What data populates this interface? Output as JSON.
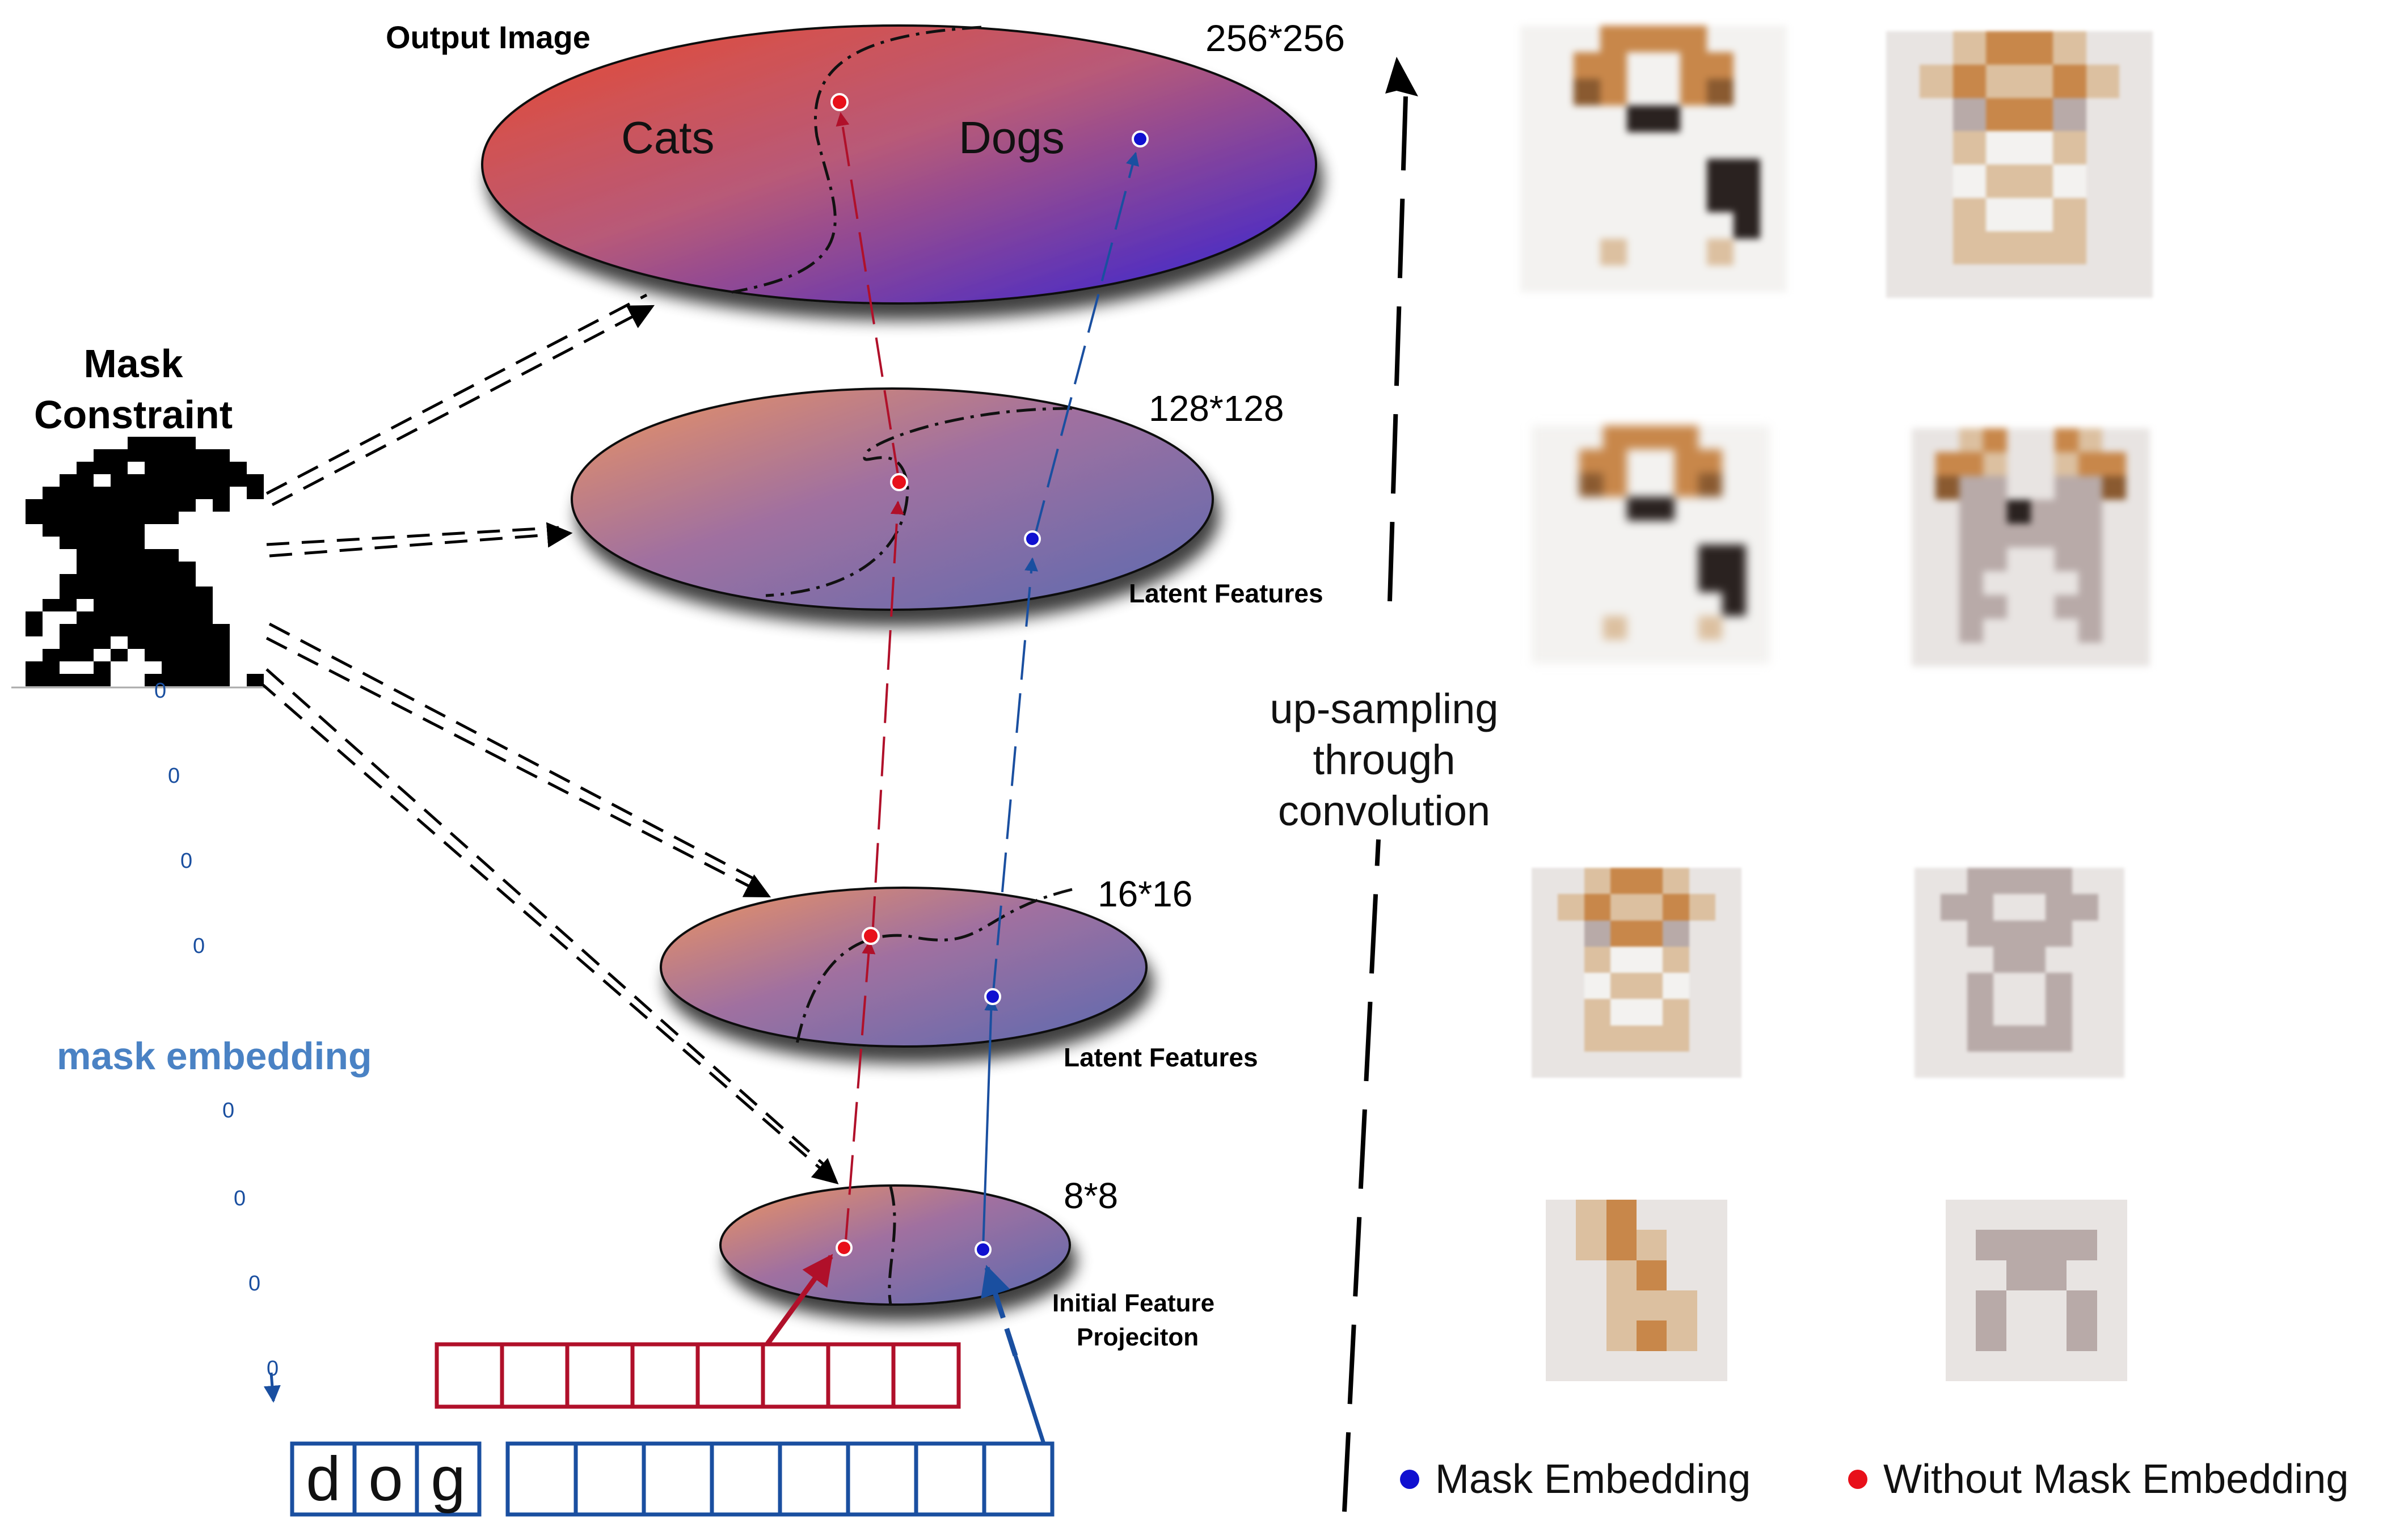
{
  "labels": {
    "output_image": "Output Image",
    "res_256": "256*256",
    "res_128": "128*128",
    "res_16": "16*16",
    "res_8": "8*8",
    "cats": "Cats",
    "dogs": "Dogs",
    "latent_features_1": "Latent Features",
    "latent_features_2": "Latent Features",
    "initial_feature_line1": "Initial Feature",
    "initial_feature_line2": "Projeciton",
    "mask_constraint_line1": "Mask",
    "mask_constraint_line2": "Constraint",
    "mask_embedding": "mask embedding",
    "upsampling_line1": "up-sampling",
    "upsampling_line2": "through",
    "upsampling_line3": "convolution",
    "zero": "0",
    "word_letters": [
      "d",
      "o",
      "g"
    ]
  },
  "legend": {
    "mask_embedding": "Mask Embedding",
    "without_mask_embedding": "Without Mask Embedding"
  },
  "colors": {
    "red_path": "#b0102a",
    "blue_path": "#1a4fa0",
    "red_dot": "#e8101a",
    "blue_dot": "#1010d0",
    "mask_embedding_text": "#4a82c4",
    "ellipse_warm": "#e8904a",
    "ellipse_cool": "#6a6aaa",
    "output_warm": "#e05040",
    "output_cool": "#3a2ad0"
  }
}
